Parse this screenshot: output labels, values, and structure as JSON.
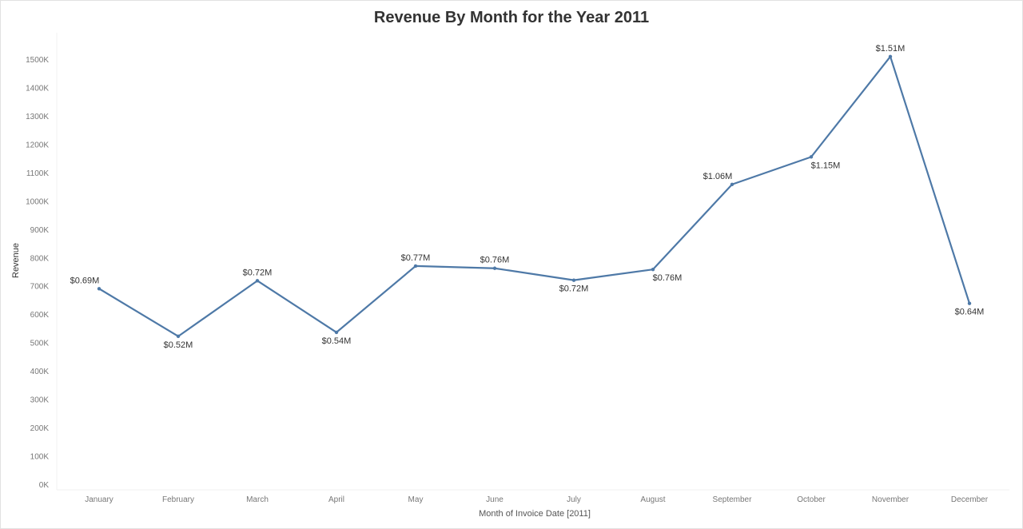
{
  "chart_data": {
    "type": "line",
    "title": "Revenue By Month for the Year 2011",
    "xlabel": "Month of Invoice Date [2011]",
    "ylabel": "Revenue",
    "categories": [
      "January",
      "February",
      "March",
      "April",
      "May",
      "June",
      "July",
      "August",
      "September",
      "October",
      "November",
      "December"
    ],
    "series": [
      {
        "values": [
          690000,
          522000,
          718000,
          536000,
          770000,
          762000,
          720000,
          758000,
          1058000,
          1155000,
          1509000,
          638000
        ],
        "labels": [
          "$0.69M",
          "$0.52M",
          "$0.72M",
          "$0.54M",
          "$0.77M",
          "$0.76M",
          "$0.72M",
          "$0.76M",
          "$1.06M",
          "$1.15M",
          "$1.51M",
          "$0.64M"
        ],
        "color": "#4e79a7"
      }
    ],
    "yticks": [
      0,
      100000,
      200000,
      300000,
      400000,
      500000,
      600000,
      700000,
      800000,
      900000,
      1000000,
      1100000,
      1200000,
      1300000,
      1400000,
      1500000
    ],
    "ytick_labels": [
      "0K",
      "100K",
      "200K",
      "300K",
      "400K",
      "500K",
      "600K",
      "700K",
      "800K",
      "900K",
      "1000K",
      "1100K",
      "1200K",
      "1300K",
      "1400K",
      "1500K"
    ],
    "ylim": [
      0,
      1600000
    ],
    "grid": false,
    "legend": "none"
  }
}
